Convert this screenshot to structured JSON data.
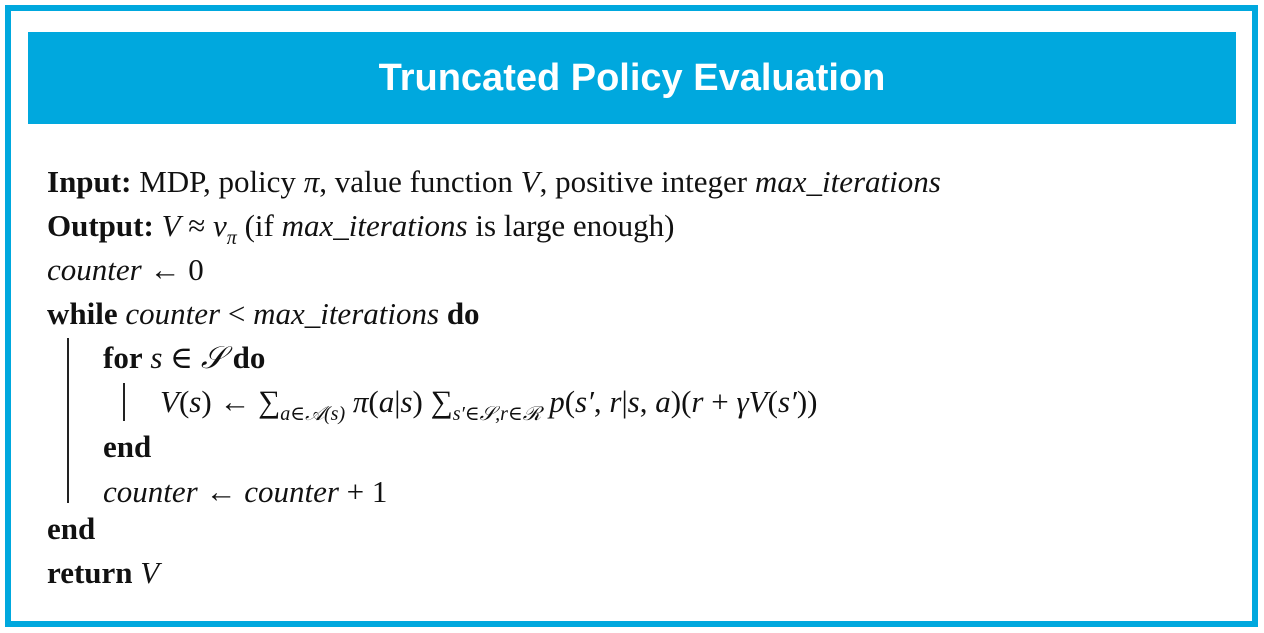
{
  "title": "Truncated Policy Evaluation",
  "colors": {
    "accent": "#00a8de",
    "title_text": "#ffffff"
  },
  "lines": [
    {
      "indent": 0,
      "segments": [
        {
          "t": "Input:",
          "s": "b"
        },
        {
          "t": " MDP, policy ",
          "s": "r"
        },
        {
          "t": "π",
          "s": "i"
        },
        {
          "t": ", value function ",
          "s": "r"
        },
        {
          "t": "V",
          "s": "i"
        },
        {
          "t": ", positive integer ",
          "s": "r"
        },
        {
          "t": "max_iterations",
          "s": "i"
        }
      ]
    },
    {
      "indent": 0,
      "segments": [
        {
          "t": "Output:",
          "s": "b"
        },
        {
          "t": " V",
          "s": "i"
        },
        {
          "t": " ≈ ",
          "s": "r"
        },
        {
          "t": "v",
          "s": "i"
        },
        {
          "t": "π",
          "s": "sub"
        },
        {
          "t": " (if ",
          "s": "r"
        },
        {
          "t": "max_iterations",
          "s": "i"
        },
        {
          "t": " is large enough)",
          "s": "r"
        }
      ]
    },
    {
      "indent": 0,
      "segments": [
        {
          "t": "counter",
          "s": "i"
        },
        {
          "t": " ← 0",
          "s": "r"
        }
      ]
    },
    {
      "indent": 0,
      "segments": [
        {
          "t": "while",
          "s": "b"
        },
        {
          "t": " counter",
          "s": "i"
        },
        {
          "t": " < ",
          "s": "r"
        },
        {
          "t": "max_iterations",
          "s": "i"
        },
        {
          "t": " do",
          "s": "b"
        }
      ]
    },
    {
      "indent": 1,
      "segments": [
        {
          "t": "for",
          "s": "b"
        },
        {
          "t": " s",
          "s": "i"
        },
        {
          "t": " ∈ ",
          "s": "r"
        },
        {
          "t": "𝒮",
          "s": "i"
        },
        {
          "t": " do",
          "s": "b"
        }
      ]
    },
    {
      "indent": 2,
      "segments": [
        {
          "t": "V",
          "s": "i"
        },
        {
          "t": "(",
          "s": "r"
        },
        {
          "t": "s",
          "s": "i"
        },
        {
          "t": ") ← ∑",
          "s": "r"
        },
        {
          "t": "a∈𝒜(s)",
          "s": "sub"
        },
        {
          "t": " π",
          "s": "i"
        },
        {
          "t": "(",
          "s": "r"
        },
        {
          "t": "a",
          "s": "i"
        },
        {
          "t": "|",
          "s": "r"
        },
        {
          "t": "s",
          "s": "i"
        },
        {
          "t": ") ∑",
          "s": "r"
        },
        {
          "t": "s′∈𝒮,r∈ℛ",
          "s": "sub"
        },
        {
          "t": " p",
          "s": "i"
        },
        {
          "t": "(",
          "s": "r"
        },
        {
          "t": "s′",
          "s": "i"
        },
        {
          "t": ", ",
          "s": "r"
        },
        {
          "t": "r",
          "s": "i"
        },
        {
          "t": "|",
          "s": "r"
        },
        {
          "t": "s",
          "s": "i"
        },
        {
          "t": ", ",
          "s": "r"
        },
        {
          "t": "a",
          "s": "i"
        },
        {
          "t": ")(",
          "s": "r"
        },
        {
          "t": "r",
          "s": "i"
        },
        {
          "t": " + ",
          "s": "r"
        },
        {
          "t": "γV",
          "s": "i"
        },
        {
          "t": "(",
          "s": "r"
        },
        {
          "t": "s′",
          "s": "i"
        },
        {
          "t": "))",
          "s": "r"
        }
      ]
    },
    {
      "indent": 1,
      "segments": [
        {
          "t": "end",
          "s": "b"
        }
      ]
    },
    {
      "indent": 1,
      "segments": [
        {
          "t": "counter",
          "s": "i"
        },
        {
          "t": " ← ",
          "s": "r"
        },
        {
          "t": "counter",
          "s": "i"
        },
        {
          "t": " + 1",
          "s": "r"
        }
      ]
    },
    {
      "indent": 0,
      "segments": [
        {
          "t": "end",
          "s": "b"
        }
      ]
    },
    {
      "indent": 0,
      "segments": [
        {
          "t": "return",
          "s": "b"
        },
        {
          "t": " V",
          "s": "i"
        }
      ]
    }
  ]
}
